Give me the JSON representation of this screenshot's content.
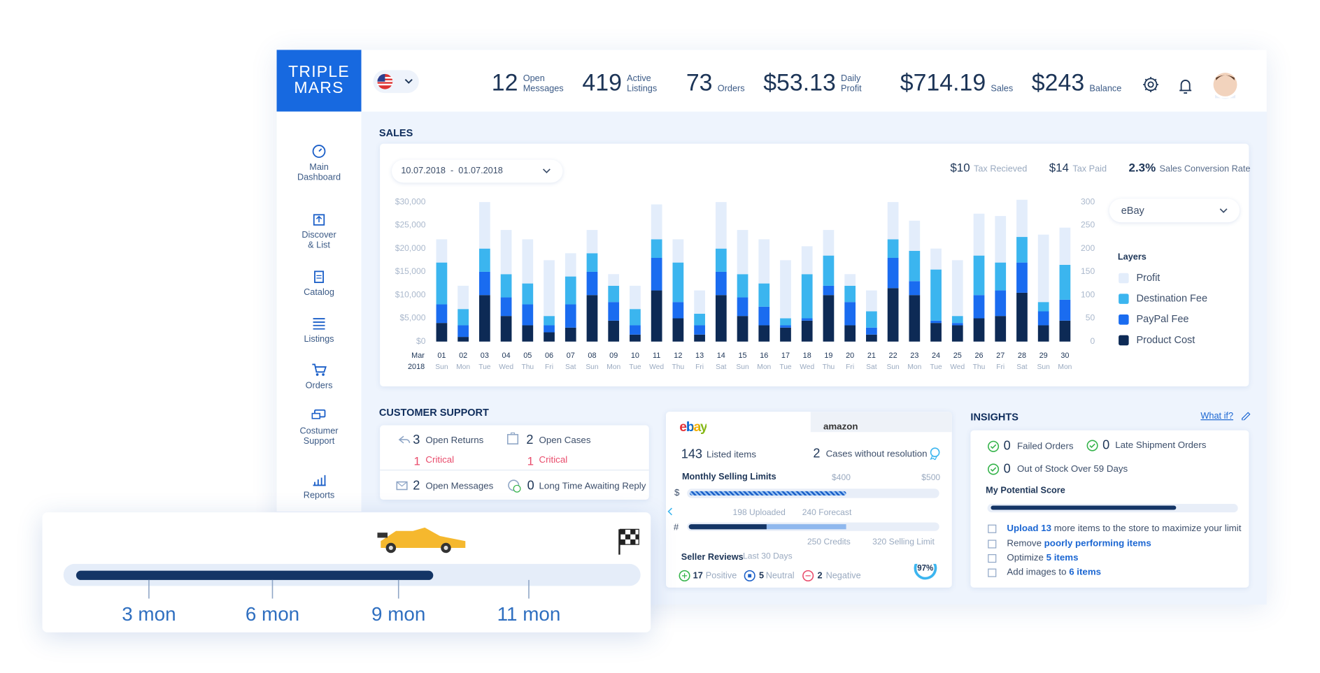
{
  "header": {
    "logo": [
      "TRIPLE",
      "MARS"
    ],
    "stats": [
      {
        "value": "12",
        "label": "Open Messages"
      },
      {
        "value": "419",
        "label": "Active Listings"
      },
      {
        "value": "73",
        "label": "Orders"
      },
      {
        "value": "$53.13",
        "label": "Daily Profit"
      },
      {
        "value": "$714.19",
        "label": "Sales"
      },
      {
        "value": "$243",
        "label": "Balance"
      }
    ]
  },
  "sidebar": [
    "Main Dashboard",
    "Discover & List",
    "Catalog",
    "Listings",
    "Orders",
    "Costumer Support",
    "Reports"
  ],
  "sales": {
    "title": "SALES",
    "date_from": "10.07.2018",
    "date_to": "01.07.2018",
    "summary": [
      {
        "value": "$10",
        "label": "Tax Recieved"
      },
      {
        "value": "$14",
        "label": "Tax Paid"
      },
      {
        "value": "2.3%",
        "label": "Sales Conversion Rate"
      }
    ],
    "marketplace": "eBay",
    "legend_title": "Layers"
  },
  "chart_data": {
    "type": "stacked_bar",
    "month": "Mar",
    "year": "2018",
    "categories": [
      "01",
      "02",
      "03",
      "04",
      "05",
      "06",
      "07",
      "08",
      "09",
      "10",
      "11",
      "12",
      "13",
      "14",
      "15",
      "16",
      "17",
      "18",
      "19",
      "20",
      "21",
      "22",
      "23",
      "24",
      "25",
      "26",
      "27",
      "28",
      "29",
      "30"
    ],
    "weekdays": [
      "Sun",
      "Mon",
      "Tue",
      "Wed",
      "Thu",
      "Fri",
      "Sat",
      "Sun",
      "Mon",
      "Tue",
      "Wed",
      "Thu",
      "Fri",
      "Sat",
      "Sun",
      "Mon",
      "Tue",
      "Wed",
      "Thu",
      "Fri",
      "Sat",
      "Sun",
      "Mon",
      "Tue",
      "Wed",
      "Thu",
      "Fri",
      "Sat",
      "Sun",
      "Mon"
    ],
    "series": [
      {
        "name": "Profit",
        "color": "#e3edfb",
        "values": [
          5000,
          5000,
          10000,
          9500,
          9500,
          12000,
          5000,
          5000,
          2500,
          5000,
          7500,
          5000,
          5000,
          10000,
          9500,
          9500,
          12500,
          6000,
          5500,
          2500,
          4500,
          8000,
          6500,
          4500,
          12000,
          9000,
          10000,
          8000,
          14500,
          8000
        ]
      },
      {
        "name": "Destination Fee",
        "color": "#3bb5ef",
        "values": [
          9000,
          3500,
          5000,
          5000,
          4500,
          2000,
          6000,
          4000,
          3500,
          3500,
          4000,
          8500,
          2500,
          5000,
          5000,
          5000,
          1500,
          9500,
          6500,
          3500,
          3500,
          4000,
          6500,
          11000,
          1500,
          8500,
          6000,
          5500,
          2000,
          7500
        ]
      },
      {
        "name": "PayPal Fee",
        "color": "#1a6cf0",
        "values": [
          4000,
          2500,
          5000,
          4000,
          4500,
          1500,
          5000,
          5000,
          4000,
          2000,
          7000,
          3500,
          2000,
          5000,
          4000,
          4000,
          500,
          500,
          2000,
          5000,
          1500,
          6500,
          3000,
          500,
          500,
          5000,
          5500,
          6500,
          3000,
          4500
        ]
      },
      {
        "name": "Product Cost",
        "color": "#0d2a55",
        "values": [
          4000,
          1000,
          10000,
          5500,
          3500,
          2000,
          3000,
          10000,
          4500,
          1500,
          11000,
          5000,
          1500,
          10000,
          5500,
          3500,
          3000,
          4500,
          10000,
          3500,
          1500,
          11500,
          10000,
          4000,
          3500,
          5000,
          5500,
          10500,
          3500,
          4500
        ]
      }
    ],
    "ylim": [
      0,
      30000
    ],
    "yticks": [
      {
        "value": 0,
        "label": "$0"
      },
      {
        "value": 5000,
        "label": "$5,000"
      },
      {
        "value": 10000,
        "label": "$10,000"
      },
      {
        "value": 15000,
        "label": "$15,000"
      },
      {
        "value": 20000,
        "label": "$20,000"
      },
      {
        "value": 25000,
        "label": "$25,000"
      },
      {
        "value": 30000,
        "label": "$30,000"
      }
    ],
    "y2lim": [
      0,
      300
    ],
    "y2ticks": [
      0,
      50,
      100,
      150,
      200,
      250,
      300
    ],
    "grid": false
  },
  "support": {
    "title": "CUSTOMER SUPPORT",
    "items": [
      {
        "value": "3",
        "label": "Open Returns",
        "critical": "1",
        "critical_label": "Critical"
      },
      {
        "value": "2",
        "label": "Open Cases",
        "critical": "1",
        "critical_label": "Critical"
      },
      {
        "value": "2",
        "label": "Open Messages"
      },
      {
        "value": "0",
        "label": "Long Time Awaiting Reply"
      }
    ]
  },
  "market": {
    "tabs": [
      "ebay",
      "amazon"
    ],
    "listed": {
      "value": "143",
      "label": "Listed items"
    },
    "cases": {
      "value": "2",
      "label": "Cases without resolution"
    },
    "limits_title": "Monthly Selling Limits",
    "money_marks": [
      "$400",
      "$500"
    ],
    "money_symbol": "$",
    "uploaded": "198 Uploaded",
    "forecast": "240 Forecast",
    "count_symbol": "#",
    "credits": "250 Credits",
    "selling_limit": "320 Selling Limit",
    "reviews_title": "Seller Reviews",
    "reviews_period": "Last 30 Days",
    "reviews": [
      {
        "value": "17",
        "label": "Positive"
      },
      {
        "value": "5",
        "label": "Neutral"
      },
      {
        "value": "2",
        "label": "Negative"
      }
    ],
    "score": "97%"
  },
  "insights": {
    "title": "INSIGHTS",
    "what_if": "What if?",
    "checks": [
      {
        "value": "0",
        "label": "Failed Orders"
      },
      {
        "value": "0",
        "label": "Late Shipment Orders"
      },
      {
        "value": "0",
        "label": "Out of Stock Over 59 Days"
      }
    ],
    "score_title": "My Potential Score",
    "tasks": [
      [
        "Upload 13",
        "more items to the store to maximize your limit"
      ],
      [
        "Remove",
        "poorly performing items"
      ],
      [
        "Optimize",
        "5 items"
      ],
      [
        "Add images to",
        "6 items"
      ]
    ]
  },
  "timeline": {
    "labels": [
      "3 mon",
      "6 mon",
      "9 mon",
      "11 mon"
    ]
  }
}
